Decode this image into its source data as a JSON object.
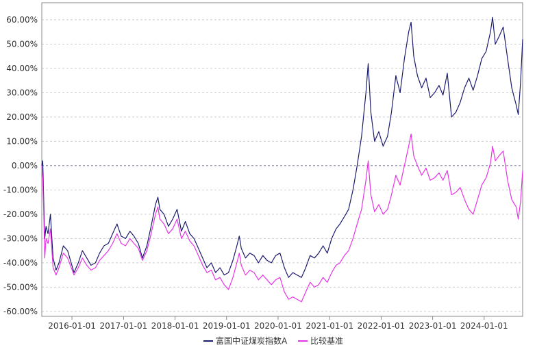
{
  "chart_data": {
    "type": "line",
    "title": "",
    "xlabel": "",
    "ylabel": "",
    "x_range": [
      "2015-06-01",
      "2024-09-30"
    ],
    "ylim": [
      -0.62,
      0.67
    ],
    "y_ticks": [
      {
        "value": 0.6,
        "label": "60.00%"
      },
      {
        "value": 0.5,
        "label": "50.00%"
      },
      {
        "value": 0.4,
        "label": "40.00%"
      },
      {
        "value": 0.3,
        "label": "30.00%"
      },
      {
        "value": 0.2,
        "label": "20.00%"
      },
      {
        "value": 0.1,
        "label": "10.00%"
      },
      {
        "value": 0.0,
        "label": "0.00%"
      },
      {
        "value": -0.1,
        "label": "-10.00%"
      },
      {
        "value": -0.2,
        "label": "-20.00%"
      },
      {
        "value": -0.3,
        "label": "-30.00%"
      },
      {
        "value": -0.4,
        "label": "-40.00%"
      },
      {
        "value": -0.5,
        "label": "-50.00%"
      },
      {
        "value": -0.6,
        "label": "-60.00%"
      }
    ],
    "x_ticks": [
      "2016-01-01",
      "2017-01-01",
      "2018-01-01",
      "2019-01-01",
      "2020-01-01",
      "2021-01-01",
      "2022-01-01",
      "2023-01-01",
      "2024-01-01"
    ],
    "grid": true,
    "legend_position": "bottom-center",
    "series": [
      {
        "name": "富国中证煤炭指数A",
        "color": "#1a1a6e",
        "points": [
          [
            "2015-06-01",
            0.0
          ],
          [
            "2015-06-08",
            0.02
          ],
          [
            "2015-06-15",
            -0.15
          ],
          [
            "2015-06-22",
            -0.3
          ],
          [
            "2015-07-01",
            -0.25
          ],
          [
            "2015-07-15",
            -0.28
          ],
          [
            "2015-08-01",
            -0.2
          ],
          [
            "2015-08-20",
            -0.38
          ],
          [
            "2015-09-10",
            -0.43
          ],
          [
            "2015-10-01",
            -0.4
          ],
          [
            "2015-11-01",
            -0.33
          ],
          [
            "2015-12-01",
            -0.35
          ],
          [
            "2016-01-15",
            -0.44
          ],
          [
            "2016-02-15",
            -0.4
          ],
          [
            "2016-03-15",
            -0.35
          ],
          [
            "2016-04-15",
            -0.38
          ],
          [
            "2016-05-15",
            -0.41
          ],
          [
            "2016-06-15",
            -0.4
          ],
          [
            "2016-07-15",
            -0.36
          ],
          [
            "2016-08-15",
            -0.33
          ],
          [
            "2016-09-15",
            -0.32
          ],
          [
            "2016-10-15",
            -0.28
          ],
          [
            "2016-11-15",
            -0.24
          ],
          [
            "2016-12-15",
            -0.29
          ],
          [
            "2017-01-15",
            -0.3
          ],
          [
            "2017-02-15",
            -0.27
          ],
          [
            "2017-03-15",
            -0.29
          ],
          [
            "2017-04-15",
            -0.32
          ],
          [
            "2017-05-15",
            -0.38
          ],
          [
            "2017-06-15",
            -0.33
          ],
          [
            "2017-07-15",
            -0.25
          ],
          [
            "2017-08-15",
            -0.16
          ],
          [
            "2017-09-01",
            -0.13
          ],
          [
            "2017-09-15",
            -0.18
          ],
          [
            "2017-10-15",
            -0.2
          ],
          [
            "2017-11-15",
            -0.25
          ],
          [
            "2017-12-15",
            -0.22
          ],
          [
            "2018-01-15",
            -0.18
          ],
          [
            "2018-02-15",
            -0.27
          ],
          [
            "2018-03-15",
            -0.23
          ],
          [
            "2018-04-15",
            -0.28
          ],
          [
            "2018-05-15",
            -0.3
          ],
          [
            "2018-06-15",
            -0.34
          ],
          [
            "2018-07-15",
            -0.38
          ],
          [
            "2018-08-15",
            -0.42
          ],
          [
            "2018-09-15",
            -0.4
          ],
          [
            "2018-10-15",
            -0.44
          ],
          [
            "2018-11-15",
            -0.42
          ],
          [
            "2018-12-15",
            -0.45
          ],
          [
            "2019-01-15",
            -0.44
          ],
          [
            "2019-02-15",
            -0.39
          ],
          [
            "2019-03-15",
            -0.33
          ],
          [
            "2019-04-01",
            -0.29
          ],
          [
            "2019-04-15",
            -0.34
          ],
          [
            "2019-05-15",
            -0.38
          ],
          [
            "2019-06-15",
            -0.36
          ],
          [
            "2019-07-15",
            -0.37
          ],
          [
            "2019-08-15",
            -0.4
          ],
          [
            "2019-09-15",
            -0.37
          ],
          [
            "2019-10-15",
            -0.39
          ],
          [
            "2019-11-15",
            -0.4
          ],
          [
            "2019-12-15",
            -0.37
          ],
          [
            "2020-01-15",
            -0.36
          ],
          [
            "2020-02-15",
            -0.42
          ],
          [
            "2020-03-15",
            -0.46
          ],
          [
            "2020-04-15",
            -0.44
          ],
          [
            "2020-05-15",
            -0.45
          ],
          [
            "2020-06-15",
            -0.46
          ],
          [
            "2020-07-15",
            -0.42
          ],
          [
            "2020-08-15",
            -0.37
          ],
          [
            "2020-09-15",
            -0.38
          ],
          [
            "2020-10-15",
            -0.36
          ],
          [
            "2020-11-15",
            -0.33
          ],
          [
            "2020-12-15",
            -0.36
          ],
          [
            "2021-01-15",
            -0.3
          ],
          [
            "2021-02-15",
            -0.26
          ],
          [
            "2021-03-15",
            -0.24
          ],
          [
            "2021-04-15",
            -0.21
          ],
          [
            "2021-05-15",
            -0.18
          ],
          [
            "2021-06-15",
            -0.1
          ],
          [
            "2021-07-15",
            0.0
          ],
          [
            "2021-08-15",
            0.12
          ],
          [
            "2021-09-15",
            0.3
          ],
          [
            "2021-10-01",
            0.42
          ],
          [
            "2021-10-20",
            0.22
          ],
          [
            "2021-11-15",
            0.1
          ],
          [
            "2021-12-15",
            0.14
          ],
          [
            "2022-01-15",
            0.08
          ],
          [
            "2022-02-15",
            0.12
          ],
          [
            "2022-03-15",
            0.22
          ],
          [
            "2022-04-15",
            0.37
          ],
          [
            "2022-05-15",
            0.3
          ],
          [
            "2022-06-15",
            0.44
          ],
          [
            "2022-07-15",
            0.55
          ],
          [
            "2022-08-01",
            0.59
          ],
          [
            "2022-08-20",
            0.45
          ],
          [
            "2022-09-15",
            0.37
          ],
          [
            "2022-10-15",
            0.32
          ],
          [
            "2022-11-15",
            0.36
          ],
          [
            "2022-12-15",
            0.28
          ],
          [
            "2023-01-15",
            0.3
          ],
          [
            "2023-02-15",
            0.33
          ],
          [
            "2023-03-15",
            0.29
          ],
          [
            "2023-04-15",
            0.38
          ],
          [
            "2023-05-15",
            0.2
          ],
          [
            "2023-06-15",
            0.22
          ],
          [
            "2023-07-15",
            0.26
          ],
          [
            "2023-08-15",
            0.32
          ],
          [
            "2023-09-15",
            0.36
          ],
          [
            "2023-10-15",
            0.31
          ],
          [
            "2023-11-15",
            0.37
          ],
          [
            "2023-12-15",
            0.44
          ],
          [
            "2024-01-15",
            0.47
          ],
          [
            "2024-02-15",
            0.55
          ],
          [
            "2024-03-01",
            0.61
          ],
          [
            "2024-03-20",
            0.5
          ],
          [
            "2024-04-15",
            0.53
          ],
          [
            "2024-05-15",
            0.57
          ],
          [
            "2024-06-15",
            0.44
          ],
          [
            "2024-07-15",
            0.32
          ],
          [
            "2024-08-15",
            0.25
          ],
          [
            "2024-08-30",
            0.21
          ],
          [
            "2024-09-15",
            0.34
          ],
          [
            "2024-09-30",
            0.52
          ]
        ]
      },
      {
        "name": "比较基准",
        "color": "#e633e6",
        "points": [
          [
            "2015-06-01",
            0.0
          ],
          [
            "2015-06-08",
            -0.05
          ],
          [
            "2015-06-15",
            -0.2
          ],
          [
            "2015-06-22",
            -0.38
          ],
          [
            "2015-07-01",
            -0.3
          ],
          [
            "2015-07-15",
            -0.32
          ],
          [
            "2015-08-01",
            -0.26
          ],
          [
            "2015-08-20",
            -0.42
          ],
          [
            "2015-09-10",
            -0.45
          ],
          [
            "2015-10-01",
            -0.42
          ],
          [
            "2015-11-01",
            -0.36
          ],
          [
            "2015-12-01",
            -0.38
          ],
          [
            "2016-01-15",
            -0.45
          ],
          [
            "2016-02-15",
            -0.42
          ],
          [
            "2016-03-15",
            -0.38
          ],
          [
            "2016-04-15",
            -0.41
          ],
          [
            "2016-05-15",
            -0.43
          ],
          [
            "2016-06-15",
            -0.42
          ],
          [
            "2016-07-15",
            -0.39
          ],
          [
            "2016-08-15",
            -0.37
          ],
          [
            "2016-09-15",
            -0.35
          ],
          [
            "2016-10-15",
            -0.32
          ],
          [
            "2016-11-15",
            -0.28
          ],
          [
            "2016-12-15",
            -0.32
          ],
          [
            "2017-01-15",
            -0.33
          ],
          [
            "2017-02-15",
            -0.3
          ],
          [
            "2017-03-15",
            -0.32
          ],
          [
            "2017-04-15",
            -0.34
          ],
          [
            "2017-05-15",
            -0.39
          ],
          [
            "2017-06-15",
            -0.35
          ],
          [
            "2017-07-15",
            -0.28
          ],
          [
            "2017-08-15",
            -0.2
          ],
          [
            "2017-09-01",
            -0.17
          ],
          [
            "2017-09-15",
            -0.22
          ],
          [
            "2017-10-15",
            -0.24
          ],
          [
            "2017-11-15",
            -0.28
          ],
          [
            "2017-12-15",
            -0.26
          ],
          [
            "2018-01-15",
            -0.22
          ],
          [
            "2018-02-15",
            -0.3
          ],
          [
            "2018-03-15",
            -0.27
          ],
          [
            "2018-04-15",
            -0.31
          ],
          [
            "2018-05-15",
            -0.33
          ],
          [
            "2018-06-15",
            -0.37
          ],
          [
            "2018-07-15",
            -0.41
          ],
          [
            "2018-08-15",
            -0.44
          ],
          [
            "2018-09-15",
            -0.43
          ],
          [
            "2018-10-15",
            -0.47
          ],
          [
            "2018-11-15",
            -0.46
          ],
          [
            "2018-12-15",
            -0.49
          ],
          [
            "2019-01-15",
            -0.51
          ],
          [
            "2019-02-15",
            -0.46
          ],
          [
            "2019-03-15",
            -0.4
          ],
          [
            "2019-04-01",
            -0.36
          ],
          [
            "2019-04-15",
            -0.41
          ],
          [
            "2019-05-15",
            -0.45
          ],
          [
            "2019-06-15",
            -0.43
          ],
          [
            "2019-07-15",
            -0.44
          ],
          [
            "2019-08-15",
            -0.47
          ],
          [
            "2019-09-15",
            -0.45
          ],
          [
            "2019-10-15",
            -0.47
          ],
          [
            "2019-11-15",
            -0.49
          ],
          [
            "2019-12-15",
            -0.47
          ],
          [
            "2020-01-15",
            -0.46
          ],
          [
            "2020-02-15",
            -0.52
          ],
          [
            "2020-03-15",
            -0.55
          ],
          [
            "2020-04-15",
            -0.54
          ],
          [
            "2020-05-15",
            -0.55
          ],
          [
            "2020-06-15",
            -0.56
          ],
          [
            "2020-07-15",
            -0.52
          ],
          [
            "2020-08-15",
            -0.48
          ],
          [
            "2020-09-15",
            -0.5
          ],
          [
            "2020-10-15",
            -0.49
          ],
          [
            "2020-11-15",
            -0.46
          ],
          [
            "2020-12-15",
            -0.48
          ],
          [
            "2021-01-15",
            -0.44
          ],
          [
            "2021-02-15",
            -0.41
          ],
          [
            "2021-03-15",
            -0.4
          ],
          [
            "2021-04-15",
            -0.37
          ],
          [
            "2021-05-15",
            -0.35
          ],
          [
            "2021-06-15",
            -0.3
          ],
          [
            "2021-07-15",
            -0.24
          ],
          [
            "2021-08-15",
            -0.18
          ],
          [
            "2021-09-15",
            -0.06
          ],
          [
            "2021-10-01",
            0.02
          ],
          [
            "2021-10-20",
            -0.12
          ],
          [
            "2021-11-15",
            -0.19
          ],
          [
            "2021-12-15",
            -0.16
          ],
          [
            "2022-01-15",
            -0.2
          ],
          [
            "2022-02-15",
            -0.18
          ],
          [
            "2022-03-15",
            -0.12
          ],
          [
            "2022-04-15",
            -0.04
          ],
          [
            "2022-05-15",
            -0.08
          ],
          [
            "2022-06-15",
            0.0
          ],
          [
            "2022-07-15",
            0.08
          ],
          [
            "2022-08-01",
            0.13
          ],
          [
            "2022-08-20",
            0.04
          ],
          [
            "2022-09-15",
            0.0
          ],
          [
            "2022-10-15",
            -0.04
          ],
          [
            "2022-11-15",
            -0.01
          ],
          [
            "2022-12-15",
            -0.06
          ],
          [
            "2023-01-15",
            -0.05
          ],
          [
            "2023-02-15",
            -0.03
          ],
          [
            "2023-03-15",
            -0.06
          ],
          [
            "2023-04-15",
            -0.02
          ],
          [
            "2023-05-15",
            -0.12
          ],
          [
            "2023-06-15",
            -0.11
          ],
          [
            "2023-07-15",
            -0.09
          ],
          [
            "2023-08-15",
            -0.14
          ],
          [
            "2023-09-15",
            -0.18
          ],
          [
            "2023-10-15",
            -0.2
          ],
          [
            "2023-11-15",
            -0.14
          ],
          [
            "2023-12-15",
            -0.08
          ],
          [
            "2024-01-15",
            -0.05
          ],
          [
            "2024-02-15",
            0.01
          ],
          [
            "2024-03-01",
            0.08
          ],
          [
            "2024-03-20",
            0.02
          ],
          [
            "2024-04-15",
            0.04
          ],
          [
            "2024-05-15",
            0.06
          ],
          [
            "2024-06-15",
            -0.06
          ],
          [
            "2024-07-15",
            -0.14
          ],
          [
            "2024-08-15",
            -0.17
          ],
          [
            "2024-08-30",
            -0.22
          ],
          [
            "2024-09-15",
            -0.15
          ],
          [
            "2024-09-30",
            -0.02
          ]
        ]
      }
    ]
  }
}
